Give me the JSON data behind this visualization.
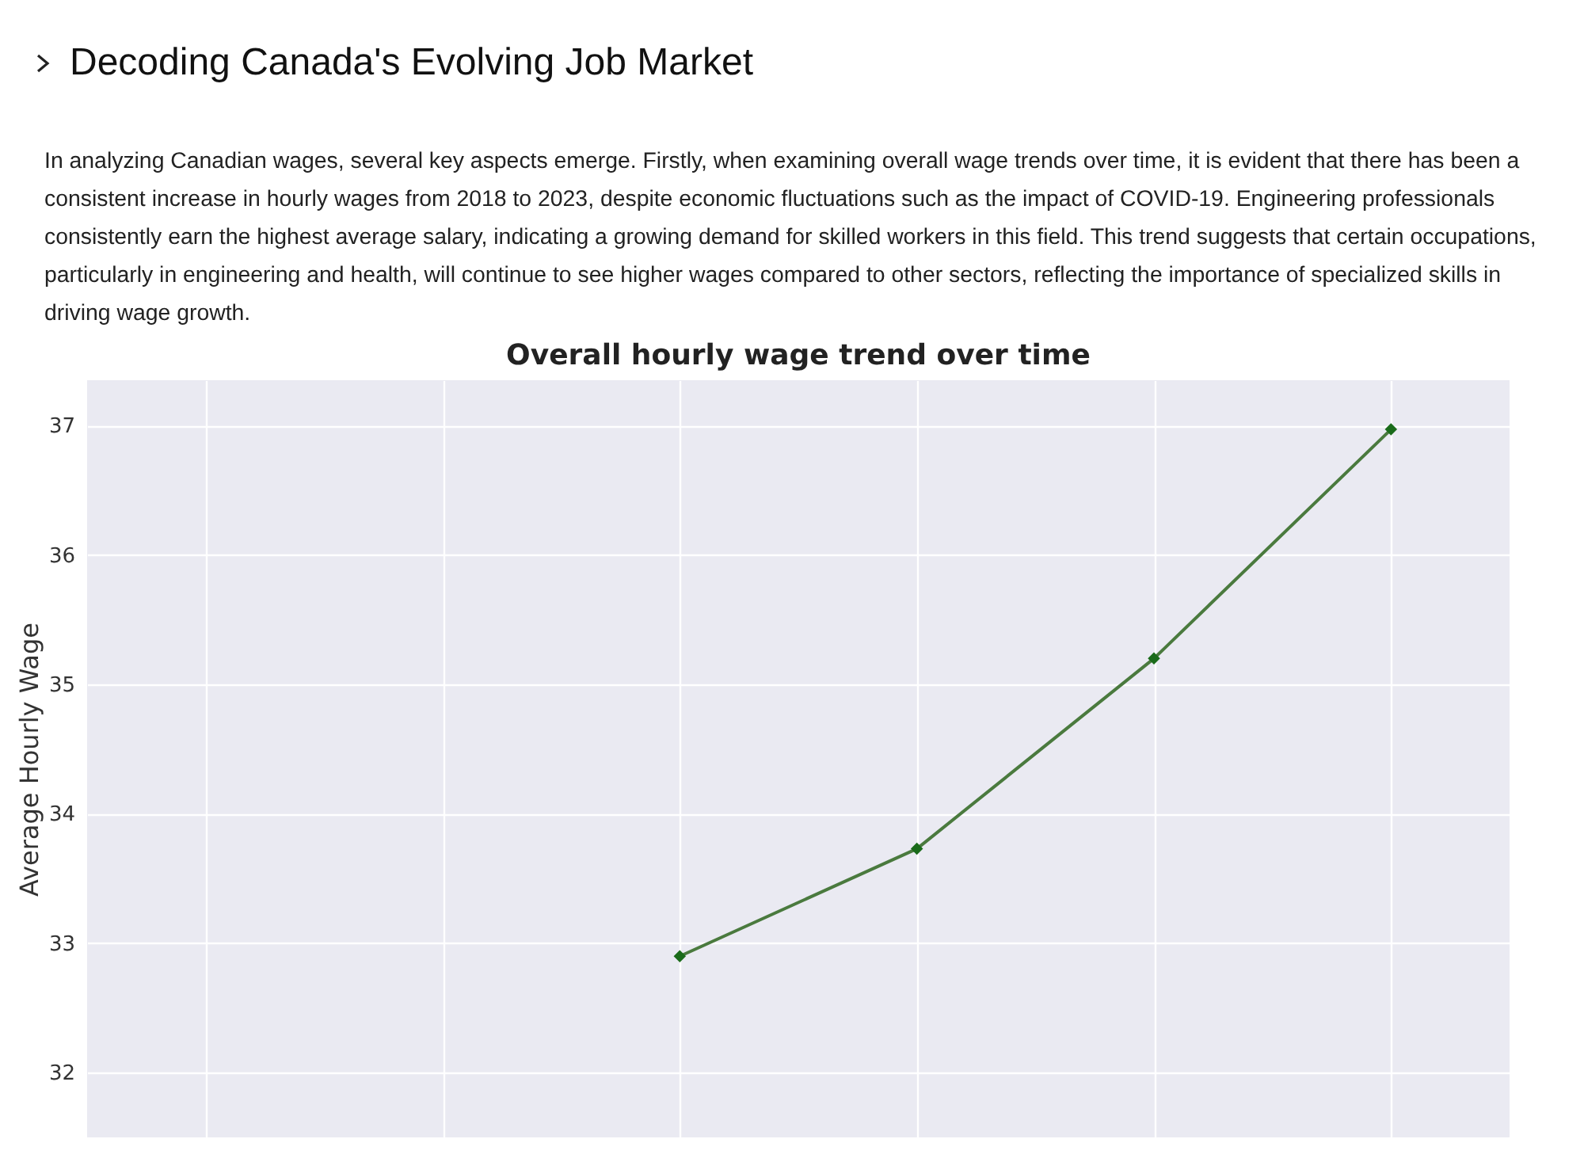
{
  "chart_data": {
    "type": "line",
    "title": "Overall hourly wage trend over time",
    "annotations": [
      "Decoding Canada's Evolving Job Market",
      "In analyzing Canadian wages, several key aspects emerge. Firstly, when examining overall wage trends over time, it is evident that there has been a consistent increase in hourly wages from 2018 to 2023, despite economic fluctuations such as the impact of COVID-19. Engineering professionals consistently earn the highest average salary, indicating a growing demand for skilled workers in this field. This trend suggests that certain occupations, particularly in engineering and health, will continue to see higher wages compared to other sectors, reflecting the importance of specialized skills in driving wage growth."
    ],
    "ylabel": "Average Hourly Wage",
    "categories": [
      null,
      null,
      null,
      null,
      null,
      null
    ],
    "series": [
      {
        "color": "#4a7a3e",
        "values": [
          null,
          null,
          32.9,
          33.73,
          35.2,
          36.97
        ]
      }
    ],
    "ylim": [
      31.5,
      37.35
    ],
    "yticks": [
      32,
      33,
      34,
      35,
      36,
      37
    ],
    "grid": true,
    "marker": "diamond",
    "tick_labels": "y"
  }
}
